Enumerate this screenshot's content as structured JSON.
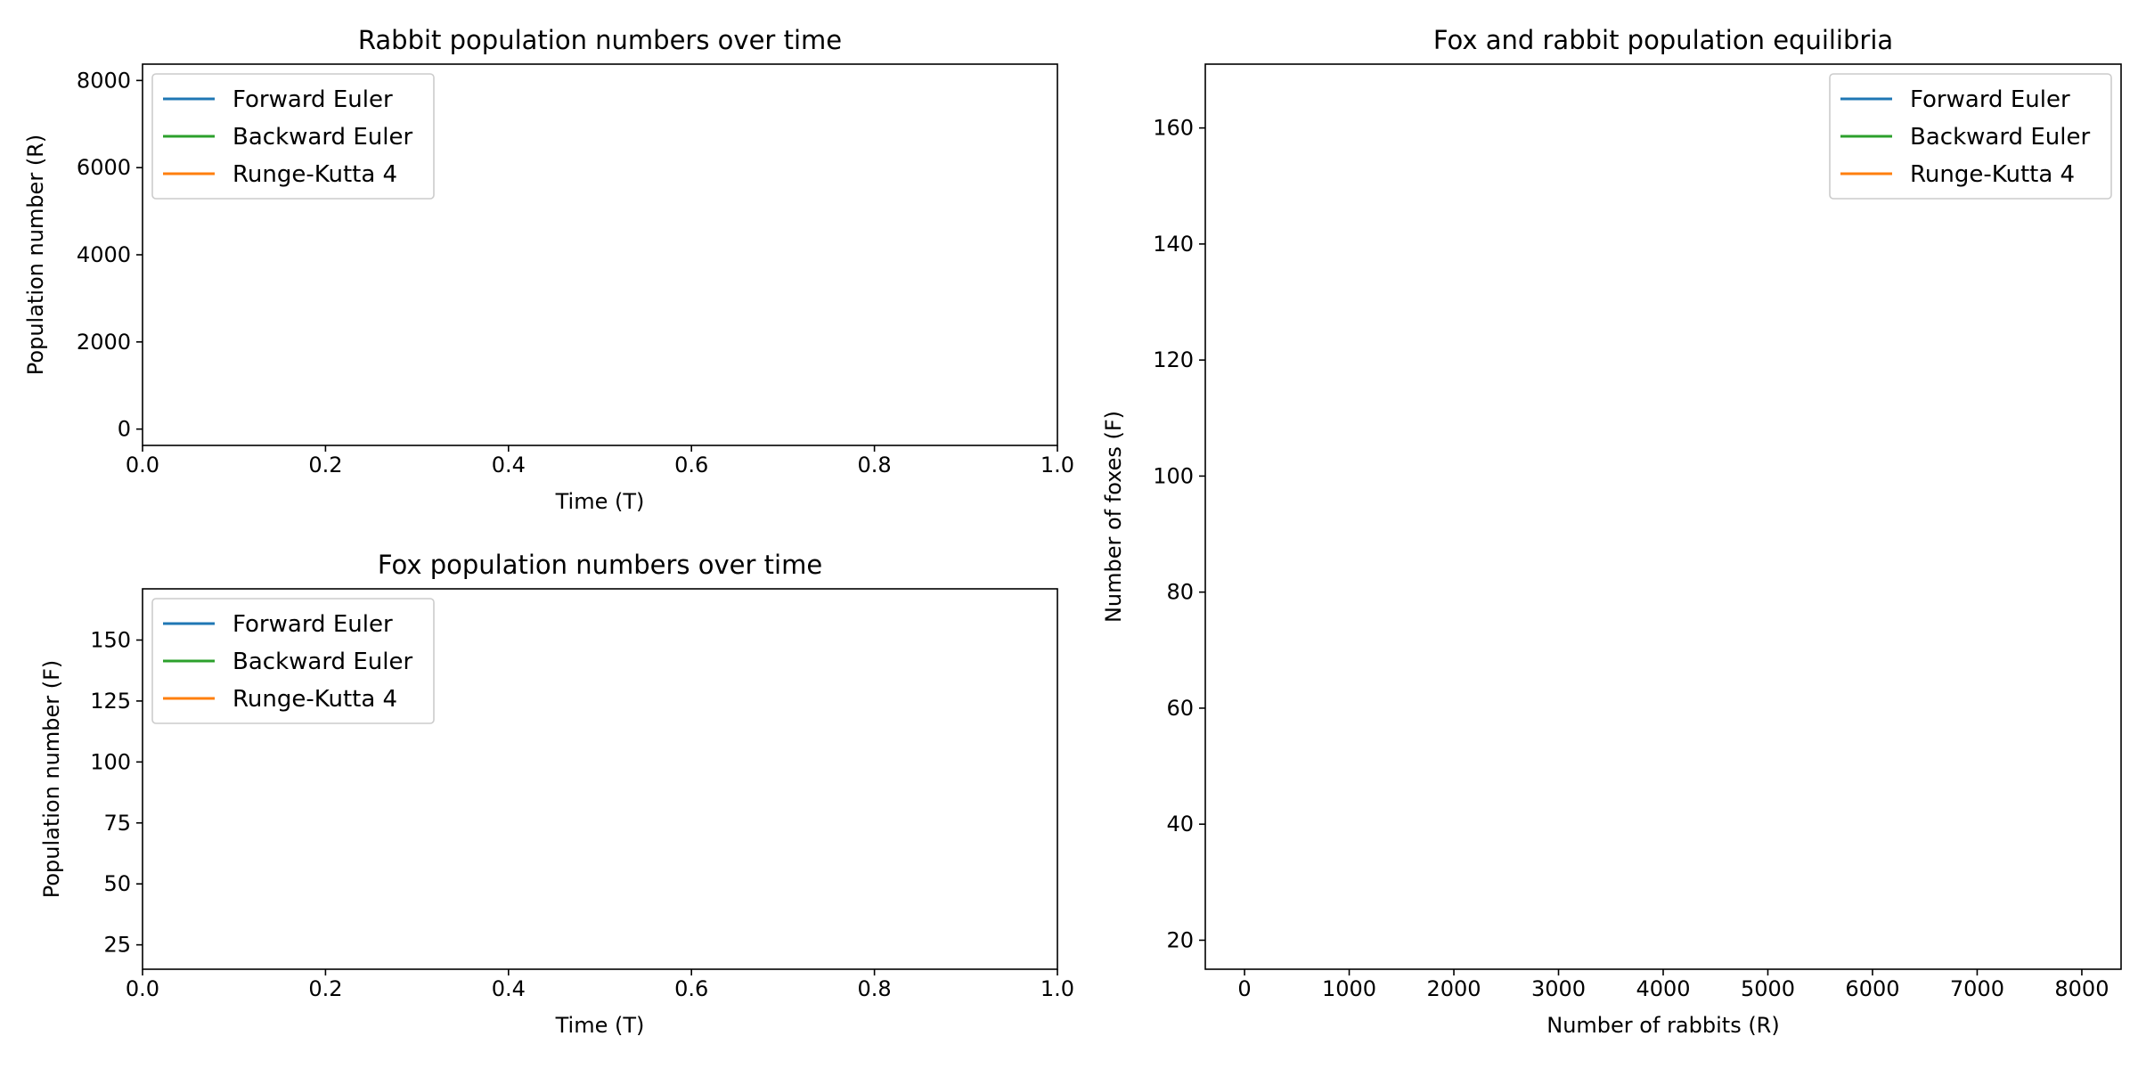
{
  "chart_data": [
    {
      "type": "line",
      "title": "Rabbit population numbers over time",
      "xlabel": "Time (T)",
      "ylabel": "Population number (R)",
      "xlim": [
        0.0,
        1.0
      ],
      "ylim": [
        -375,
        8375
      ],
      "xticks": [
        "0.0",
        "0.2",
        "0.4",
        "0.6",
        "0.8",
        "1.0"
      ],
      "yticks": [
        "0",
        "2000",
        "4000",
        "6000",
        "8000"
      ],
      "grid": false,
      "legend_position": "upper-left",
      "series": [
        {
          "name": "Forward Euler",
          "color": "#1f77b4",
          "x": [],
          "y": []
        },
        {
          "name": "Backward Euler",
          "color": "#2ca02c",
          "x": [],
          "y": []
        },
        {
          "name": "Runge-Kutta 4",
          "color": "#ff7f0e",
          "x": [],
          "y": []
        }
      ]
    },
    {
      "type": "line",
      "title": "Fox population numbers over time",
      "xlabel": "Time (T)",
      "ylabel": "Population number (F)",
      "xlim": [
        0.0,
        1.0
      ],
      "ylim": [
        15,
        171
      ],
      "xticks": [
        "0.0",
        "0.2",
        "0.4",
        "0.6",
        "0.8",
        "1.0"
      ],
      "yticks": [
        "25",
        "50",
        "75",
        "100",
        "125",
        "150"
      ],
      "grid": false,
      "legend_position": "upper-left",
      "series": [
        {
          "name": "Forward Euler",
          "color": "#1f77b4",
          "x": [],
          "y": []
        },
        {
          "name": "Backward Euler",
          "color": "#2ca02c",
          "x": [],
          "y": []
        },
        {
          "name": "Runge-Kutta 4",
          "color": "#ff7f0e",
          "x": [],
          "y": []
        }
      ]
    },
    {
      "type": "line",
      "title": "Fox and rabbit population equilibria",
      "xlabel": "Number of rabbits (R)",
      "ylabel": "Number of foxes (F)",
      "xlim": [
        -375,
        8375
      ],
      "ylim": [
        15,
        171
      ],
      "xticks": [
        "0",
        "1000",
        "2000",
        "3000",
        "4000",
        "5000",
        "6000",
        "7000",
        "8000"
      ],
      "yticks": [
        "20",
        "40",
        "60",
        "80",
        "100",
        "120",
        "140",
        "160"
      ],
      "grid": false,
      "legend_position": "upper-right",
      "series": [
        {
          "name": "Forward Euler",
          "color": "#1f77b4",
          "x": [],
          "y": []
        },
        {
          "name": "Backward Euler",
          "color": "#2ca02c",
          "x": [],
          "y": []
        },
        {
          "name": "Runge-Kutta 4",
          "color": "#ff7f0e",
          "x": [],
          "y": []
        }
      ]
    }
  ]
}
